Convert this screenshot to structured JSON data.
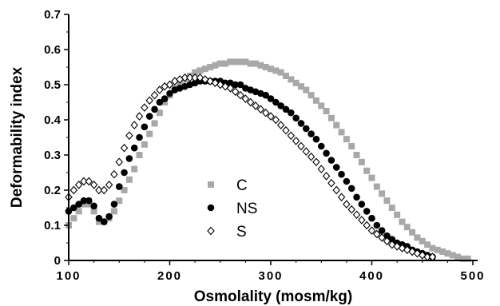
{
  "chart_data": {
    "type": "scatter",
    "title": "",
    "xlabel": "Osmolality (mosm/kg)",
    "ylabel": "Deformability index",
    "xlim": [
      100,
      500
    ],
    "ylim": [
      0,
      0.7
    ],
    "xticks": [
      "100",
      "200",
      "300",
      "400",
      "500"
    ],
    "yticks": [
      "0",
      "0.1",
      "0.2",
      "0.3",
      "0.4",
      "0.5",
      "0.6",
      "0.7"
    ],
    "grid": false,
    "legend_position": "center",
    "series": [
      {
        "name": "C",
        "marker": "square",
        "color": "#a8a8a8",
        "points": [
          [
            100,
            0.1
          ],
          [
            105,
            0.12
          ],
          [
            110,
            0.14
          ],
          [
            115,
            0.16
          ],
          [
            120,
            0.16
          ],
          [
            125,
            0.14
          ],
          [
            130,
            0.11
          ],
          [
            135,
            0.11
          ],
          [
            140,
            0.12
          ],
          [
            145,
            0.14
          ],
          [
            150,
            0.17
          ],
          [
            155,
            0.2
          ],
          [
            160,
            0.23
          ],
          [
            165,
            0.26
          ],
          [
            170,
            0.3
          ],
          [
            175,
            0.33
          ],
          [
            180,
            0.36
          ],
          [
            185,
            0.39
          ],
          [
            190,
            0.42
          ],
          [
            195,
            0.45
          ],
          [
            200,
            0.47
          ],
          [
            205,
            0.49
          ],
          [
            210,
            0.505
          ],
          [
            215,
            0.515
          ],
          [
            220,
            0.525
          ],
          [
            225,
            0.535
          ],
          [
            230,
            0.54
          ],
          [
            235,
            0.545
          ],
          [
            240,
            0.55
          ],
          [
            245,
            0.555
          ],
          [
            250,
            0.56
          ],
          [
            255,
            0.56
          ],
          [
            260,
            0.565
          ],
          [
            265,
            0.565
          ],
          [
            270,
            0.565
          ],
          [
            275,
            0.565
          ],
          [
            280,
            0.56
          ],
          [
            285,
            0.56
          ],
          [
            290,
            0.555
          ],
          [
            295,
            0.55
          ],
          [
            300,
            0.545
          ],
          [
            305,
            0.54
          ],
          [
            310,
            0.535
          ],
          [
            315,
            0.525
          ],
          [
            320,
            0.515
          ],
          [
            325,
            0.505
          ],
          [
            330,
            0.495
          ],
          [
            335,
            0.485
          ],
          [
            340,
            0.47
          ],
          [
            345,
            0.455
          ],
          [
            350,
            0.44
          ],
          [
            355,
            0.425
          ],
          [
            360,
            0.405
          ],
          [
            365,
            0.385
          ],
          [
            370,
            0.365
          ],
          [
            375,
            0.345
          ],
          [
            380,
            0.325
          ],
          [
            385,
            0.3
          ],
          [
            390,
            0.28
          ],
          [
            395,
            0.255
          ],
          [
            400,
            0.235
          ],
          [
            405,
            0.21
          ],
          [
            410,
            0.19
          ],
          [
            415,
            0.17
          ],
          [
            420,
            0.15
          ],
          [
            425,
            0.13
          ],
          [
            430,
            0.11
          ],
          [
            435,
            0.095
          ],
          [
            440,
            0.08
          ],
          [
            445,
            0.065
          ],
          [
            450,
            0.055
          ],
          [
            455,
            0.045
          ],
          [
            460,
            0.035
          ],
          [
            465,
            0.03
          ],
          [
            470,
            0.025
          ],
          [
            475,
            0.02
          ],
          [
            480,
            0.015
          ],
          [
            485,
            0.01
          ],
          [
            490,
            0.005
          ],
          [
            495,
            0.005
          ]
        ]
      },
      {
        "name": "NS",
        "marker": "circle",
        "color": "#000000",
        "points": [
          [
            100,
            0.14
          ],
          [
            105,
            0.15
          ],
          [
            110,
            0.16
          ],
          [
            115,
            0.17
          ],
          [
            120,
            0.17
          ],
          [
            125,
            0.155
          ],
          [
            130,
            0.12
          ],
          [
            135,
            0.11
          ],
          [
            140,
            0.125
          ],
          [
            145,
            0.16
          ],
          [
            150,
            0.21
          ],
          [
            155,
            0.25
          ],
          [
            160,
            0.29
          ],
          [
            165,
            0.32
          ],
          [
            170,
            0.35
          ],
          [
            175,
            0.38
          ],
          [
            180,
            0.41
          ],
          [
            185,
            0.43
          ],
          [
            190,
            0.45
          ],
          [
            195,
            0.46
          ],
          [
            200,
            0.475
          ],
          [
            205,
            0.485
          ],
          [
            210,
            0.49
          ],
          [
            215,
            0.495
          ],
          [
            220,
            0.5
          ],
          [
            225,
            0.505
          ],
          [
            230,
            0.51
          ],
          [
            235,
            0.51
          ],
          [
            240,
            0.51
          ],
          [
            245,
            0.51
          ],
          [
            250,
            0.51
          ],
          [
            255,
            0.505
          ],
          [
            260,
            0.505
          ],
          [
            265,
            0.5
          ],
          [
            270,
            0.5
          ],
          [
            275,
            0.49
          ],
          [
            280,
            0.485
          ],
          [
            285,
            0.48
          ],
          [
            290,
            0.475
          ],
          [
            295,
            0.47
          ],
          [
            300,
            0.46
          ],
          [
            305,
            0.45
          ],
          [
            310,
            0.44
          ],
          [
            315,
            0.43
          ],
          [
            320,
            0.42
          ],
          [
            325,
            0.405
          ],
          [
            330,
            0.39
          ],
          [
            335,
            0.375
          ],
          [
            340,
            0.36
          ],
          [
            345,
            0.345
          ],
          [
            350,
            0.325
          ],
          [
            355,
            0.305
          ],
          [
            360,
            0.285
          ],
          [
            365,
            0.265
          ],
          [
            370,
            0.245
          ],
          [
            375,
            0.225
          ],
          [
            380,
            0.205
          ],
          [
            385,
            0.18
          ],
          [
            390,
            0.16
          ],
          [
            395,
            0.14
          ],
          [
            400,
            0.12
          ],
          [
            405,
            0.1
          ],
          [
            410,
            0.085
          ],
          [
            415,
            0.07
          ],
          [
            420,
            0.06
          ],
          [
            425,
            0.05
          ],
          [
            430,
            0.045
          ],
          [
            435,
            0.04
          ],
          [
            440,
            0.03
          ],
          [
            445,
            0.025
          ],
          [
            450,
            0.02
          ],
          [
            455,
            0.015
          ],
          [
            460,
            0.01
          ]
        ]
      },
      {
        "name": "S",
        "marker": "diamond",
        "color": "#000000",
        "points": [
          [
            100,
            0.18
          ],
          [
            105,
            0.2
          ],
          [
            110,
            0.215
          ],
          [
            115,
            0.225
          ],
          [
            120,
            0.225
          ],
          [
            125,
            0.215
          ],
          [
            130,
            0.2
          ],
          [
            135,
            0.2
          ],
          [
            140,
            0.215
          ],
          [
            145,
            0.245
          ],
          [
            150,
            0.28
          ],
          [
            155,
            0.32
          ],
          [
            160,
            0.355
          ],
          [
            165,
            0.385
          ],
          [
            170,
            0.41
          ],
          [
            175,
            0.435
          ],
          [
            180,
            0.455
          ],
          [
            185,
            0.47
          ],
          [
            190,
            0.485
          ],
          [
            195,
            0.495
          ],
          [
            200,
            0.5
          ],
          [
            205,
            0.51
          ],
          [
            210,
            0.515
          ],
          [
            215,
            0.52
          ],
          [
            220,
            0.52
          ],
          [
            225,
            0.52
          ],
          [
            230,
            0.52
          ],
          [
            235,
            0.515
          ],
          [
            240,
            0.51
          ],
          [
            245,
            0.505
          ],
          [
            250,
            0.5
          ],
          [
            255,
            0.495
          ],
          [
            260,
            0.49
          ],
          [
            265,
            0.48
          ],
          [
            270,
            0.47
          ],
          [
            275,
            0.46
          ],
          [
            280,
            0.45
          ],
          [
            285,
            0.44
          ],
          [
            290,
            0.43
          ],
          [
            295,
            0.42
          ],
          [
            300,
            0.41
          ],
          [
            305,
            0.4
          ],
          [
            310,
            0.385
          ],
          [
            315,
            0.37
          ],
          [
            320,
            0.355
          ],
          [
            325,
            0.34
          ],
          [
            330,
            0.325
          ],
          [
            335,
            0.31
          ],
          [
            340,
            0.295
          ],
          [
            345,
            0.28
          ],
          [
            350,
            0.26
          ],
          [
            355,
            0.24
          ],
          [
            360,
            0.22
          ],
          [
            365,
            0.2
          ],
          [
            370,
            0.18
          ],
          [
            375,
            0.16
          ],
          [
            380,
            0.145
          ],
          [
            385,
            0.13
          ],
          [
            390,
            0.115
          ],
          [
            395,
            0.1
          ],
          [
            400,
            0.085
          ],
          [
            405,
            0.075
          ],
          [
            410,
            0.065
          ],
          [
            415,
            0.055
          ],
          [
            420,
            0.045
          ],
          [
            425,
            0.04
          ],
          [
            430,
            0.035
          ],
          [
            435,
            0.03
          ],
          [
            440,
            0.025
          ],
          [
            445,
            0.02
          ],
          [
            450,
            0.015
          ],
          [
            455,
            0.01
          ],
          [
            460,
            0.01
          ]
        ]
      }
    ]
  }
}
